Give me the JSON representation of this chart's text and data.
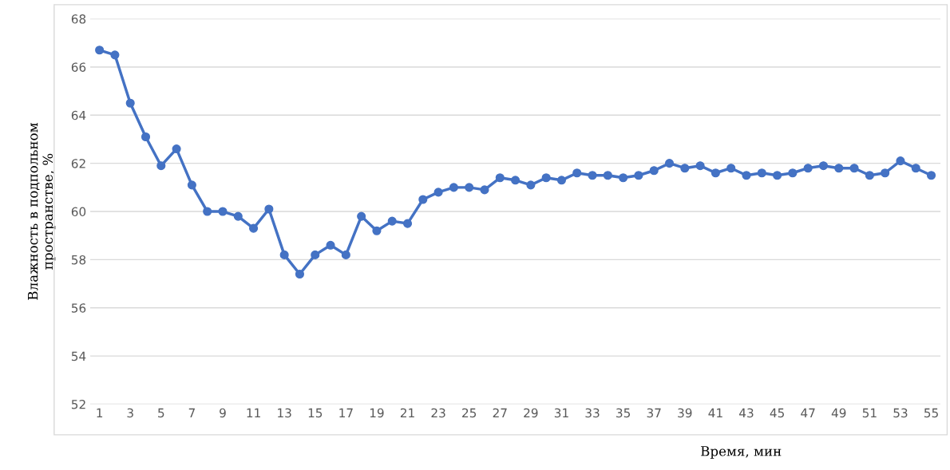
{
  "chart_data": {
    "type": "line",
    "xlabel": "Время, мин",
    "ylabel": "Влажность в подпольном\nпространстве, %",
    "categories": [
      "1",
      null,
      "3",
      null,
      "5",
      null,
      "7",
      null,
      "9",
      null,
      "11",
      null,
      "13",
      null,
      "15",
      null,
      "17",
      null,
      "19",
      null,
      "21",
      null,
      "23",
      null,
      "25",
      null,
      "27",
      null,
      "29",
      null,
      "31",
      null,
      "33",
      null,
      "35",
      null,
      "37",
      null,
      "39",
      null,
      "41",
      null,
      "43",
      null,
      "45",
      null,
      "47",
      null,
      "49",
      null,
      "51",
      null,
      "53",
      null,
      "55"
    ],
    "series": [
      {
        "color": "#4472c4",
        "values": [
          66.7,
          66.5,
          64.5,
          63.1,
          61.9,
          62.6,
          61.1,
          60.0,
          60.0,
          59.8,
          59.3,
          60.1,
          58.2,
          57.4,
          58.2,
          58.6,
          58.2,
          59.8,
          59.2,
          59.6,
          59.5,
          60.5,
          60.8,
          61.0,
          61.0,
          60.9,
          61.4,
          61.3,
          61.1,
          61.4,
          61.3,
          61.6,
          61.5,
          61.5,
          61.4,
          61.5,
          61.7,
          62.0,
          61.8,
          61.9,
          61.6,
          61.8,
          61.5,
          61.6,
          61.5,
          61.6,
          61.8,
          61.9,
          61.8,
          61.8,
          61.5,
          61.6,
          62.1,
          61.8,
          61.5
        ]
      }
    ],
    "ylim": [
      52,
      68
    ],
    "yticks": [
      52,
      54,
      56,
      58,
      60,
      62,
      64,
      66,
      68
    ],
    "grid": "y",
    "marker": "circle",
    "line_style": "solid",
    "legend": false
  }
}
